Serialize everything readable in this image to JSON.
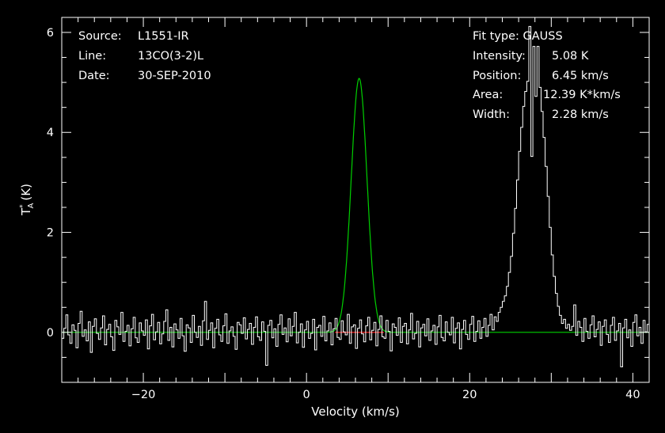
{
  "info_left": [
    {
      "label": "Source:",
      "value": "L1551-IR"
    },
    {
      "label": "Line:",
      "value": "13CO(3-2)L"
    },
    {
      "label": "Date:",
      "value": "30-SEP-2010"
    }
  ],
  "info_right": {
    "fit_type": "Fit type: GAUSS",
    "rows": [
      {
        "label": "Intensity:",
        "value": "5.08 K"
      },
      {
        "label": "Position:",
        "value": "6.45 km/s"
      },
      {
        "label": "Area:",
        "value": "12.39 K*km/s"
      },
      {
        "label": "Width:",
        "value": "2.28 km/s"
      }
    ]
  },
  "chart_data": {
    "type": "line",
    "xlabel": "Velocity (km/s)",
    "ylabel": "T*A (K)",
    "xlim": [
      -30,
      42
    ],
    "ylim": [
      -1,
      6.3
    ],
    "x_ticks": [
      -20,
      0,
      20,
      40
    ],
    "y_ticks": [
      0,
      2,
      4,
      6
    ],
    "x_tick_labels": [
      "−20",
      "0",
      "20",
      "40"
    ],
    "y_tick_labels": [
      "0",
      "2",
      "4",
      "6"
    ],
    "grid": false,
    "legend": "none",
    "channel_width_kms": 0.25,
    "rms_noise_K": 0.18,
    "series": [
      {
        "role": "observed-spectrum",
        "color": "#ffffff",
        "values": [
          -0.12,
          0.08,
          0.35,
          -0.05,
          -0.22,
          0.15,
          0.04,
          -0.31,
          0.18,
          0.42,
          -0.08,
          0.05,
          -0.17,
          0.21,
          -0.4,
          0.12,
          0.27,
          -0.02,
          -0.14,
          0.09,
          0.33,
          -0.25,
          0.06,
          0.16,
          -0.09,
          -0.36,
          0.24,
          0.11,
          -0.04,
          0.4,
          -0.18,
          0.02,
          0.14,
          -0.27,
          0.07,
          0.3,
          -0.11,
          -0.2,
          0.19,
          0.03,
          -0.06,
          0.25,
          -0.33,
          0.13,
          0.36,
          -0.15,
          0.01,
          0.2,
          -0.23,
          -0.03,
          0.22,
          0.45,
          -0.16,
          0.1,
          -0.29,
          0.17,
          0.05,
          -0.12,
          0.28,
          -0.07,
          -0.38,
          0.15,
          0.09,
          -0.2,
          0.34,
          0.0,
          -0.1,
          0.12,
          -0.26,
          0.23,
          0.62,
          -0.14,
          0.04,
          0.19,
          -0.31,
          0.08,
          0.26,
          -0.05,
          -0.18,
          0.13,
          0.37,
          -0.22,
          0.03,
          0.11,
          -0.08,
          -0.34,
          0.2,
          0.15,
          -0.02,
          0.29,
          -0.13,
          0.06,
          0.18,
          -0.24,
          0.1,
          0.31,
          -0.09,
          -0.16,
          0.21,
          0.02,
          -0.66,
          0.14,
          0.24,
          -0.11,
          0.07,
          -0.28,
          0.16,
          0.35,
          -0.04,
          0.09,
          -0.19,
          0.27,
          -0.07,
          0.12,
          0.4,
          -0.21,
          0.0,
          0.17,
          -0.3,
          0.05,
          0.22,
          -0.12,
          -0.02,
          0.26,
          -0.35,
          0.1,
          0.14,
          -0.08,
          0.32,
          -0.17,
          0.03,
          0.19,
          -0.25,
          0.07,
          0.28,
          -0.1,
          -0.14,
          0.23,
          0.01,
          -0.05,
          0.36,
          -0.22,
          0.11,
          0.15,
          -0.32,
          0.08,
          0.25,
          -0.03,
          -0.19,
          0.13,
          0.3,
          -0.15,
          0.04,
          0.2,
          -0.27,
          0.06,
          0.33,
          -0.09,
          -0.12,
          0.24,
          0.02,
          -0.37,
          0.17,
          0.1,
          -0.06,
          0.29,
          -0.2,
          0.12,
          0.18,
          -0.23,
          0.05,
          0.38,
          -0.13,
          -0.02,
          0.22,
          -0.29,
          0.09,
          0.16,
          -0.07,
          0.27,
          -0.16,
          0.03,
          0.14,
          -0.24,
          0.11,
          0.34,
          -0.1,
          -0.17,
          0.21,
          0.0,
          -0.05,
          0.3,
          -0.21,
          0.08,
          0.19,
          -0.33,
          0.06,
          0.24,
          -0.04,
          -0.14,
          0.16,
          0.32,
          -0.18,
          0.02,
          0.23,
          -0.12,
          0.1,
          0.28,
          -0.08,
          0.14,
          0.36,
          0.05,
          0.31,
          0.22,
          0.4,
          0.5,
          0.62,
          0.73,
          0.92,
          1.2,
          1.52,
          1.98,
          2.48,
          3.05,
          3.62,
          4.1,
          4.52,
          4.82,
          5.02,
          6.12,
          3.52,
          5.72,
          4.72,
          5.72,
          4.9,
          4.42,
          3.9,
          3.32,
          2.72,
          2.1,
          1.55,
          1.12,
          0.78,
          0.52,
          0.34,
          0.18,
          0.26,
          0.08,
          0.16,
          0.04,
          0.12,
          0.55,
          -0.06,
          0.22,
          0.1,
          -0.18,
          0.28,
          0.02,
          -0.12,
          0.15,
          0.33,
          -0.09,
          0.06,
          0.21,
          -0.26,
          0.12,
          0.25,
          -0.04,
          -0.2,
          0.14,
          0.3,
          -0.16,
          0.03,
          0.18,
          -0.69,
          0.09,
          0.26,
          -0.11,
          0.05,
          -0.28,
          0.2,
          0.35,
          -0.07,
          0.1,
          -0.22,
          0.24,
          0.01,
          0.16,
          0.29,
          -0.19,
          0.04,
          0.13,
          -0.31,
          0.08,
          0.21,
          -0.06,
          -0.15,
          0.27,
          0.11,
          -0.09,
          0.33,
          -0.23,
          0.02,
          0.18,
          -0.13,
          0.07,
          0.25,
          -0.02,
          -0.34,
          0.15,
          0.22,
          -0.1,
          0.05,
          0.3,
          -0.2,
          0.12,
          0.17,
          -0.27,
          0.06,
          0.28,
          -0.08,
          -0.14,
          0.2,
          0.03,
          -0.05,
          0.36,
          -0.18,
          0.1,
          0.14,
          -0.3,
          0.04,
          0.23,
          -0.11,
          -0.21,
          0.16,
          0.32,
          -0.07,
          0.09,
          0.19,
          -0.24,
          0.02,
          0.27,
          -0.12,
          -0.03,
          0.22,
          -0.36,
          0.13,
          0.15,
          -0.06,
          0.31,
          -0.17,
          0.08,
          0.18,
          -0.26,
          0.05,
          0.29,
          -0.09,
          -0.16,
          0.24,
          0.01,
          -0.04,
          0.34,
          -0.2,
          0.11,
          0.14,
          -0.29,
          0.07,
          0.21,
          -0.13,
          0.0,
          0.26,
          0.38,
          -0.15,
          0.06,
          0.2,
          -0.23,
          0.1,
          0.3,
          -0.05,
          -0.18,
          0.17,
          0.04,
          -0.33,
          0.22,
          0.12,
          -0.08,
          0.27,
          -0.14,
          0.03,
          0.16,
          -0.25,
          0.09,
          0.32,
          -0.1,
          -0.19,
          0.23,
          0.02,
          -0.06,
          0.29,
          -0.22,
          0.13,
          0.18,
          -0.31,
          0.05,
          0.25,
          -0.03,
          -0.15,
          0.15,
          0.35,
          -0.12,
          0.08,
          0.2,
          -0.27,
          0.01,
          0.24,
          -0.09,
          0.72,
          -0.02,
          0.18,
          -0.2,
          0.11,
          0.14,
          -0.4,
          0.26,
          0.06,
          -0.1,
          0.32,
          -0.44
        ]
      },
      {
        "role": "gaussian-fit",
        "color": "#00d000",
        "peak_K": 5.08,
        "center_kms": 6.45,
        "fwhm_kms": 2.28,
        "x_range": [
          -30,
          42
        ]
      },
      {
        "role": "fit-baseline-window",
        "color": "#ff2020",
        "y": 0,
        "x_range": [
          3.5,
          9.5
        ]
      }
    ]
  }
}
